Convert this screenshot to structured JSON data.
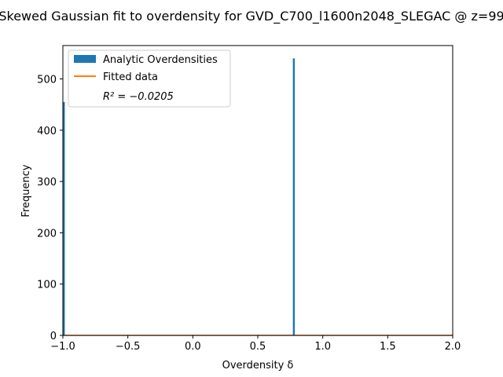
{
  "chart_data": {
    "type": "bar",
    "title": "Skewed Gaussian fit to overdensity for GVD_C700_l1600n2048_SLEGAC @ z=99",
    "xlabel": "Overdensity δ",
    "ylabel": "Frequency",
    "xlim": [
      -1.0,
      2.0
    ],
    "ylim": [
      0,
      565
    ],
    "x_ticks": [
      -1.0,
      -0.5,
      0.0,
      0.5,
      1.0,
      1.5,
      2.0
    ],
    "x_tick_labels": [
      "−1.0",
      "−0.5",
      "0.0",
      "0.5",
      "1.0",
      "1.5",
      "2.0"
    ],
    "y_ticks": [
      0,
      100,
      200,
      300,
      400,
      500
    ],
    "y_tick_labels": [
      "0",
      "100",
      "200",
      "300",
      "400",
      "500"
    ],
    "grid": false,
    "legend_position": "top-left",
    "series": [
      {
        "name": "Analytic Overdensities",
        "kind": "histogram",
        "color": "#1f77b4",
        "bins": [
          {
            "x0": -1.0,
            "x1": -0.985,
            "count": 455
          },
          {
            "x0": 0.77,
            "x1": 0.785,
            "count": 540
          }
        ]
      },
      {
        "name": "Fitted data",
        "kind": "line",
        "color": "#ff7f0e",
        "x": [
          -1.0,
          2.0
        ],
        "y": [
          0,
          0
        ]
      }
    ],
    "annotation": {
      "r2_label": "R² = −0.0205",
      "r2_value": -0.0205
    }
  }
}
